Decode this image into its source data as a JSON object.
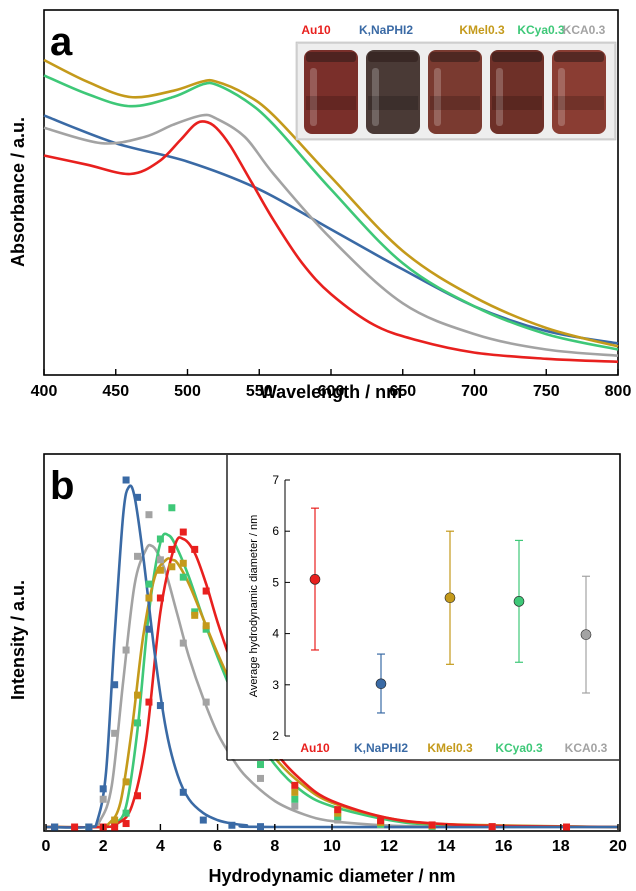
{
  "colors": {
    "Au10": "#e8201e",
    "K,NaPHI2": "#3a6aa5",
    "KMel0.3": "#c49a1b",
    "KCya0.3": "#3ec878",
    "KCA0.3": "#a3a3a3"
  },
  "photo": {
    "icon": "vials-photo",
    "vial_colors": [
      "#7a2f2a",
      "#4a3a36",
      "#7a3a30",
      "#6e3028",
      "#8a3d33"
    ]
  },
  "chart_data": [
    {
      "type": "line",
      "panel_label": "a",
      "xlabel": "Wavelength / nm",
      "ylabel": "Absorbance / a.u.",
      "xlim": [
        400,
        800
      ],
      "ylim": [
        0,
        1
      ],
      "xticks": [
        400,
        450,
        500,
        550,
        600,
        650,
        700,
        750,
        800
      ],
      "yticks_shown": false,
      "grid": false,
      "legend": {
        "placement": "top-right",
        "entries": [
          "Au10",
          "K,NaPHI2",
          "KMel0.3",
          "KCya0.3",
          "KCA0.3"
        ]
      },
      "series": [
        {
          "name": "Au10",
          "x": [
            400,
            430,
            460,
            480,
            495,
            505,
            512,
            520,
            530,
            545,
            560,
            580,
            600,
            630,
            660,
            700,
            750,
            800
          ],
          "y": [
            0.69,
            0.66,
            0.63,
            0.67,
            0.74,
            0.79,
            0.8,
            0.78,
            0.72,
            0.6,
            0.48,
            0.34,
            0.24,
            0.14,
            0.09,
            0.05,
            0.03,
            0.02
          ]
        },
        {
          "name": "K,NaPHI2",
          "x": [
            400,
            450,
            500,
            550,
            600,
            650,
            700,
            750,
            800
          ],
          "y": [
            0.82,
            0.73,
            0.67,
            0.58,
            0.45,
            0.32,
            0.2,
            0.12,
            0.08
          ]
        },
        {
          "name": "KMel0.3",
          "x": [
            400,
            430,
            460,
            490,
            510,
            520,
            540,
            560,
            600,
            650,
            700,
            750,
            800
          ],
          "y": [
            1.0,
            0.93,
            0.88,
            0.9,
            0.93,
            0.93,
            0.89,
            0.82,
            0.62,
            0.38,
            0.23,
            0.13,
            0.07
          ]
        },
        {
          "name": "KCya0.3",
          "x": [
            400,
            430,
            460,
            490,
            510,
            520,
            540,
            560,
            600,
            650,
            700,
            750,
            800
          ],
          "y": [
            0.95,
            0.89,
            0.85,
            0.88,
            0.92,
            0.92,
            0.87,
            0.79,
            0.58,
            0.34,
            0.2,
            0.11,
            0.06
          ]
        },
        {
          "name": "KCA0.3",
          "x": [
            400,
            440,
            470,
            490,
            510,
            520,
            540,
            560,
            600,
            650,
            700,
            750,
            800
          ],
          "y": [
            0.78,
            0.73,
            0.75,
            0.79,
            0.82,
            0.81,
            0.75,
            0.63,
            0.42,
            0.21,
            0.11,
            0.06,
            0.04
          ]
        }
      ]
    },
    {
      "type": "line+scatter",
      "panel_label": "b",
      "xlabel": "Hydrodynamic diameter / nm",
      "ylabel": "Intensity / a.u.",
      "xlim": [
        0,
        20
      ],
      "ylim": [
        0,
        1
      ],
      "xticks": [
        0,
        2,
        4,
        6,
        8,
        10,
        12,
        14,
        16,
        18,
        20
      ],
      "yticks_shown": false,
      "grid": false,
      "series": [
        {
          "name": "Au10",
          "fit_x": [
            0,
            2,
            2.5,
            3,
            3.5,
            4,
            4.5,
            4.8,
            5.2,
            5.6,
            6,
            6.5,
            7,
            8,
            9,
            10,
            12,
            14,
            16,
            20
          ],
          "fit_y": [
            0,
            0,
            0.01,
            0.06,
            0.25,
            0.62,
            0.81,
            0.83,
            0.79,
            0.7,
            0.59,
            0.47,
            0.37,
            0.22,
            0.13,
            0.075,
            0.025,
            0.008,
            0.003,
            0
          ],
          "points_x": [
            0.3,
            1,
            2,
            2.4,
            2.8,
            3.2,
            3.6,
            4.0,
            4.4,
            4.8,
            5.2,
            5.6,
            6.5,
            7.5,
            8.7,
            10.2,
            11.7,
            13.5,
            15.6,
            18.2
          ],
          "points_y": [
            0,
            0,
            0,
            0,
            0.01,
            0.09,
            0.36,
            0.66,
            0.8,
            0.85,
            0.8,
            0.68,
            0.46,
            0.25,
            0.12,
            0.05,
            0.018,
            0.006,
            0.001,
            0
          ]
        },
        {
          "name": "K,NaPHI2",
          "fit_x": [
            0,
            1.5,
            1.8,
            2.1,
            2.4,
            2.7,
            2.9,
            3.1,
            3.4,
            3.8,
            4.2,
            4.6,
            5.0,
            5.5,
            6,
            6.5,
            7,
            8,
            20
          ],
          "fit_y": [
            0,
            0,
            0.02,
            0.16,
            0.55,
            0.9,
            0.98,
            0.95,
            0.78,
            0.5,
            0.28,
            0.15,
            0.08,
            0.04,
            0.02,
            0.01,
            0.005,
            0,
            0
          ],
          "points_x": [
            0.3,
            1.5,
            2.0,
            2.4,
            2.8,
            3.2,
            3.6,
            4.0,
            4.8,
            5.5,
            6.5,
            7.5
          ],
          "points_y": [
            0,
            0,
            0.11,
            0.41,
            1.0,
            0.95,
            0.57,
            0.35,
            0.1,
            0.02,
            0.005,
            0.001
          ]
        },
        {
          "name": "KMel0.3",
          "fit_x": [
            0,
            1.8,
            2.2,
            2.6,
            3.0,
            3.4,
            3.8,
            4.2,
            4.4,
            4.6,
            5.0,
            5.5,
            6,
            6.5,
            7,
            8,
            9,
            10,
            12,
            14,
            20
          ],
          "fit_y": [
            0,
            0,
            0.01,
            0.07,
            0.28,
            0.55,
            0.72,
            0.77,
            0.77,
            0.76,
            0.7,
            0.6,
            0.5,
            0.41,
            0.33,
            0.2,
            0.12,
            0.07,
            0.025,
            0.008,
            0
          ],
          "points_x": [
            0.3,
            1.5,
            2.0,
            2.4,
            2.8,
            3.2,
            3.6,
            4.0,
            4.4,
            4.8,
            5.2,
            5.6,
            6.5,
            7.5,
            8.7,
            10.2,
            11.7,
            13.5
          ],
          "points_y": [
            0,
            0,
            0,
            0.02,
            0.13,
            0.38,
            0.66,
            0.74,
            0.75,
            0.76,
            0.61,
            0.58,
            0.39,
            0.21,
            0.1,
            0.04,
            0.013,
            0.004
          ]
        },
        {
          "name": "KCya0.3",
          "fit_x": [
            0,
            2,
            2.4,
            2.8,
            3.2,
            3.6,
            4.0,
            4.3,
            4.6,
            5.0,
            5.5,
            6,
            6.5,
            7,
            8,
            9,
            10,
            12,
            14,
            20
          ],
          "fit_y": [
            0,
            0,
            0.01,
            0.06,
            0.28,
            0.62,
            0.82,
            0.84,
            0.8,
            0.72,
            0.6,
            0.49,
            0.39,
            0.31,
            0.18,
            0.1,
            0.06,
            0.02,
            0.006,
            0
          ],
          "points_x": [
            0.3,
            1.5,
            2.0,
            2.4,
            2.8,
            3.2,
            3.6,
            4.0,
            4.4,
            4.8,
            5.2,
            5.6,
            6.5,
            7.5,
            8.7,
            10.2,
            11.7,
            13.5
          ],
          "points_y": [
            0,
            0,
            0,
            0.01,
            0.04,
            0.3,
            0.7,
            0.83,
            0.92,
            0.72,
            0.62,
            0.57,
            0.33,
            0.18,
            0.08,
            0.03,
            0.008,
            0.002
          ]
        },
        {
          "name": "KCA0.3",
          "fit_x": [
            0,
            1.5,
            1.9,
            2.3,
            2.7,
            3.1,
            3.5,
            3.7,
            3.9,
            4.2,
            4.6,
            5.0,
            5.5,
            6,
            6.5,
            7,
            8,
            9,
            10,
            12,
            14,
            20
          ],
          "fit_y": [
            0,
            0,
            0.02,
            0.12,
            0.42,
            0.7,
            0.8,
            0.81,
            0.79,
            0.73,
            0.61,
            0.49,
            0.37,
            0.27,
            0.2,
            0.145,
            0.075,
            0.037,
            0.017,
            0.004,
            0.001,
            0
          ],
          "points_x": [
            0.3,
            1.5,
            2.0,
            2.4,
            2.8,
            3.2,
            3.6,
            4.0,
            4.8,
            5.6,
            6.5,
            7.5,
            8.7,
            10.2,
            11.7,
            13.5,
            15.6,
            18.2
          ],
          "points_y": [
            0,
            0,
            0.08,
            0.27,
            0.51,
            0.78,
            0.9,
            0.77,
            0.53,
            0.36,
            0.24,
            0.14,
            0.06,
            0.02,
            0.006,
            0.002,
            0.001,
            0
          ]
        }
      ],
      "inset": {
        "type": "scatter",
        "ylabel": "Average hydrodynamic diameter / nm",
        "ylim": [
          2,
          7
        ],
        "yticks": [
          2,
          3,
          4,
          5,
          6,
          7
        ],
        "categories": [
          "Au10",
          "K,NaPHI2",
          "KMel0.3",
          "KCya0.3",
          "KCA0.3"
        ],
        "values": [
          5.06,
          3.02,
          4.7,
          4.63,
          3.98
        ],
        "error_low": [
          3.68,
          2.45,
          3.4,
          3.44,
          2.84
        ],
        "error_high": [
          6.45,
          3.6,
          6.0,
          5.82,
          5.12
        ]
      }
    }
  ]
}
